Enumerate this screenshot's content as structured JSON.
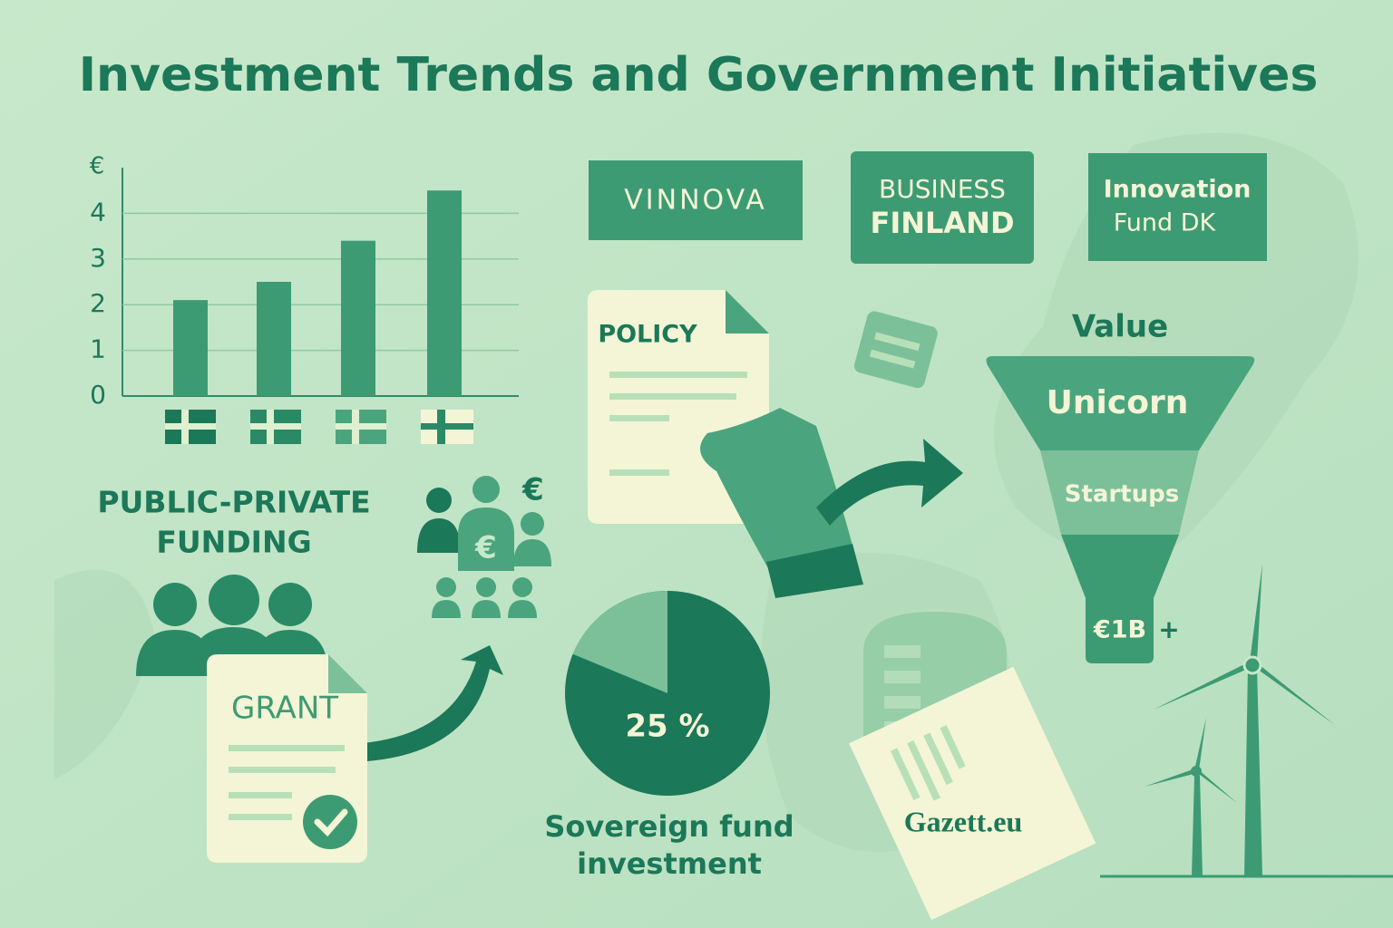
{
  "title": "Investment Trends and Government Initiatives",
  "bar_chart": {
    "unit": "€",
    "ylim": [
      0,
      5
    ],
    "yticks": [
      0,
      1,
      2,
      3,
      4
    ],
    "values": [
      2.1,
      2.5,
      3.4,
      4.5
    ]
  },
  "logos": [
    {
      "lines": [
        "VINNOVA"
      ]
    },
    {
      "lines": [
        "BUSINESS",
        "FINLAND"
      ]
    },
    {
      "lines": [
        "Innovation",
        "Fund DK"
      ]
    }
  ],
  "policy": {
    "label": "POLICY"
  },
  "funnel": {
    "title": "Value",
    "tiers": [
      "Unicorn",
      "Startups"
    ],
    "bottom": "€1B",
    "plus": "+"
  },
  "funding": {
    "lines": [
      "PUBLIC-PRIVATE",
      "FUNDING"
    ],
    "icon_symbols": [
      "€",
      "€"
    ]
  },
  "grant": {
    "label": "GRANT"
  },
  "pie": {
    "value": 25,
    "label": "25 %",
    "caption": [
      "Sovereign fund",
      "investment"
    ]
  },
  "gazette": {
    "label": "Gazett.eu"
  }
}
